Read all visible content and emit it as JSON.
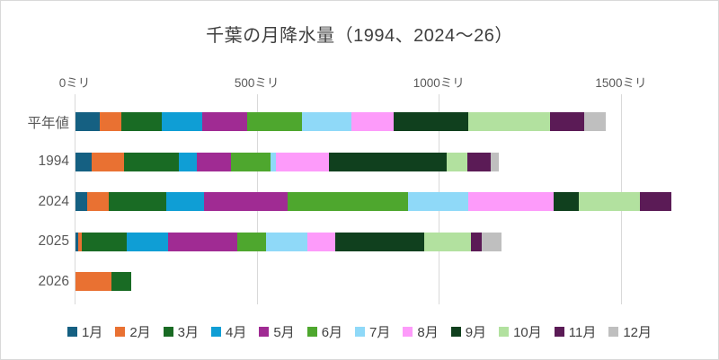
{
  "title": "千葉の月降水量（1994、2024～26）",
  "chart_data": {
    "type": "bar",
    "orientation": "horizontal",
    "stacked": true,
    "unit": "ミリ",
    "title": "千葉の月降水量（1994、2024～26）",
    "categories": [
      "平年値",
      "1994",
      "2024",
      "2025",
      "2026"
    ],
    "series": [
      {
        "name": "1月",
        "color": "#156082",
        "values": [
          67.5,
          44,
          32,
          7,
          0
        ]
      },
      {
        "name": "2月",
        "color": "#E97132",
        "values": [
          59.1,
          89,
          60,
          10,
          98
        ]
      },
      {
        "name": "3月",
        "color": "#196B24",
        "values": [
          111.3,
          150,
          156,
          123,
          56
        ]
      },
      {
        "name": "4月",
        "color": "#0F9ED5",
        "values": [
          110.0,
          49,
          104,
          114,
          0
        ]
      },
      {
        "name": "5月",
        "color": "#A02B93",
        "values": [
          122.5,
          94,
          230,
          191,
          0
        ]
      },
      {
        "name": "6月",
        "color": "#4EA72E",
        "values": [
          150.9,
          109,
          330,
          77,
          0
        ]
      },
      {
        "name": "7月",
        "color": "#8FD9F8",
        "values": [
          136.5,
          15,
          166,
          114,
          0
        ]
      },
      {
        "name": "8月",
        "color": "#FD9BFA",
        "values": [
          115.7,
          145,
          234,
          76,
          0
        ]
      },
      {
        "name": "9月",
        "color": "#10401E",
        "values": [
          204.7,
          323,
          70,
          245,
          0
        ]
      },
      {
        "name": "10月",
        "color": "#B2E19F",
        "values": [
          225.5,
          59,
          168,
          129,
          0
        ]
      },
      {
        "name": "11月",
        "color": "#5B1B56",
        "values": [
          94.1,
          64,
          87,
          29,
          0
        ]
      },
      {
        "name": "12月",
        "color": "#BFBFBF",
        "values": [
          57.8,
          22,
          0,
          54,
          0
        ]
      }
    ],
    "x_axis": {
      "max": 1700,
      "tick_interval": 500,
      "ticks": [
        {
          "value": 0,
          "label": "0ミリ"
        },
        {
          "value": 500,
          "label": "500ミリ"
        },
        {
          "value": 1000,
          "label": "1000ミリ"
        },
        {
          "value": 1500,
          "label": "1500ミリ"
        }
      ]
    },
    "legend_position": "bottom",
    "grid": "vertical-only"
  },
  "colors": {
    "title_text": "#404040",
    "axis_text": "#595959",
    "legend_text": "#404040",
    "gridline": "#D9D9D9",
    "chart_border": "#D9D9D9",
    "background": "#FFFFFF"
  }
}
